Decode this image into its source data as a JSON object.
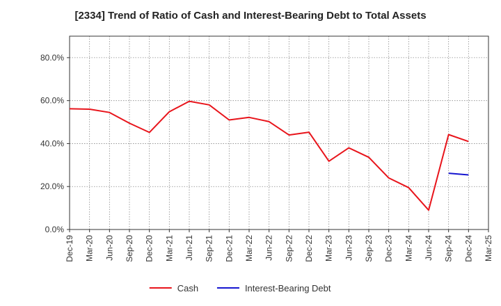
{
  "chart_data": {
    "type": "line",
    "title": "[2334]  Trend of Ratio of Cash and Interest-Bearing Debt to Total Assets",
    "xlabel": "",
    "ylabel": "",
    "ylim": [
      0,
      90
    ],
    "y_ticks": [
      0,
      20,
      40,
      60,
      80
    ],
    "y_tick_labels": [
      "0.0%",
      "20.0%",
      "40.0%",
      "60.0%",
      "80.0%"
    ],
    "x_tick_labels": [
      "Dec-19",
      "Mar-20",
      "Jun-20",
      "Sep-20",
      "Dec-20",
      "Mar-21",
      "Jun-21",
      "Sep-21",
      "Dec-21",
      "Mar-22",
      "Jun-22",
      "Sep-22",
      "Dec-22",
      "Mar-23",
      "Jun-23",
      "Sep-23",
      "Dec-23",
      "Mar-24",
      "Jun-24",
      "Sep-24",
      "Dec-24",
      "Mar-25"
    ],
    "grid": true,
    "legend_position": "bottom",
    "series": [
      {
        "name": "Cash",
        "color": "#e8141b",
        "values": [
          56.2,
          56.0,
          54.5,
          49.5,
          45.2,
          54.8,
          59.7,
          58.0,
          51.0,
          52.2,
          50.2,
          44.0,
          45.3,
          31.8,
          38.0,
          33.6,
          24.0,
          19.5,
          9.0,
          44.2,
          41.0,
          null
        ]
      },
      {
        "name": "Interest-Bearing Debt",
        "color": "#1515d0",
        "values": [
          null,
          null,
          null,
          null,
          null,
          null,
          null,
          null,
          null,
          null,
          null,
          null,
          null,
          null,
          null,
          null,
          null,
          null,
          null,
          26.2,
          25.4,
          null
        ]
      }
    ]
  }
}
